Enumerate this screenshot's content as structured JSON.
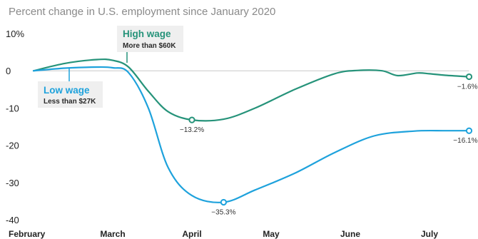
{
  "chart_data": {
    "type": "line",
    "title": "Percent change in U.S. employment since January 2020",
    "ylim": [
      -40,
      10
    ],
    "yticks": [
      10,
      0,
      -10,
      -20,
      -30,
      -40
    ],
    "ytick_labels": [
      "10%",
      "0",
      "-10",
      "-20",
      "-30",
      "-40"
    ],
    "xlim": [
      0,
      5.5
    ],
    "xtick_positions": [
      0,
      1,
      2,
      3,
      4,
      5
    ],
    "xtick_labels": [
      "February",
      "March",
      "April",
      "May",
      "June",
      "July"
    ],
    "grid": false,
    "series": [
      {
        "name": "High wage",
        "subtitle": "More than $60K",
        "color": "#26937a",
        "x": [
          0,
          0.4,
          0.8,
          1.0,
          1.2,
          1.45,
          1.7,
          2.0,
          2.4,
          2.8,
          3.3,
          3.8,
          4.1,
          4.4,
          4.6,
          4.85,
          5.0,
          5.2,
          5.5
        ],
        "y": [
          0,
          2.0,
          3.0,
          2.8,
          1.0,
          -5.5,
          -11.0,
          -13.2,
          -13.0,
          -10.0,
          -5.0,
          -0.8,
          0.1,
          0,
          -1.3,
          -0.6,
          -0.8,
          -1.2,
          -1.6
        ],
        "labeled_points": [
          {
            "x": 2.0,
            "y": -13.2,
            "label": "-13.2%"
          },
          {
            "x": 5.5,
            "y": -1.6,
            "label": "-1.6%"
          }
        ]
      },
      {
        "name": "Low wage",
        "subtitle": "Less than $27K",
        "color": "#1ea2dc",
        "x": [
          0,
          0.4,
          0.8,
          1.0,
          1.2,
          1.45,
          1.7,
          2.0,
          2.4,
          2.8,
          3.3,
          3.8,
          4.3,
          4.8,
          5.2,
          5.5
        ],
        "y": [
          0,
          0.7,
          1.0,
          0.8,
          -0.5,
          -10.0,
          -26.0,
          -33.5,
          -35.3,
          -32.0,
          -27.5,
          -22.0,
          -17.5,
          -16.2,
          -16.1,
          -16.1
        ],
        "labeled_points": [
          {
            "x": 2.4,
            "y": -35.3,
            "label": "-35.3%"
          },
          {
            "x": 5.5,
            "y": -16.1,
            "label": "-16.1%"
          }
        ]
      }
    ]
  }
}
